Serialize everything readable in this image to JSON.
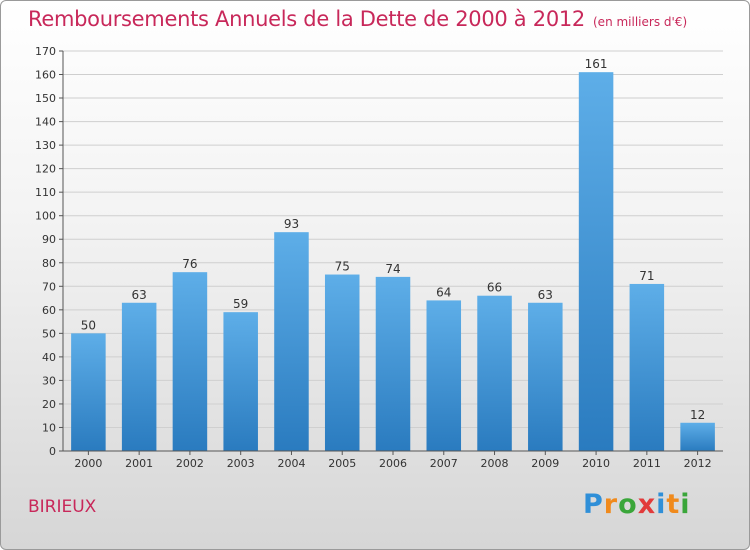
{
  "chart_data": {
    "type": "bar",
    "title": "Remboursements Annuels de la Dette de 2000 à 2012",
    "subtitle": "(en milliers d'€)",
    "categories": [
      "2000",
      "2001",
      "2002",
      "2003",
      "2004",
      "2005",
      "2006",
      "2007",
      "2008",
      "2009",
      "2010",
      "2011",
      "2012"
    ],
    "values": [
      50,
      63,
      76,
      59,
      93,
      75,
      74,
      64,
      66,
      63,
      161,
      71,
      12
    ],
    "ylim": [
      0,
      170
    ],
    "yticks": [
      0,
      10,
      20,
      30,
      40,
      50,
      60,
      70,
      80,
      90,
      100,
      110,
      120,
      130,
      140,
      150,
      160,
      170
    ],
    "grid": true,
    "legend": "none",
    "bar_color_top": "#5eaee8",
    "bar_color_bottom": "#2a7bbf",
    "grid_color": "#cfcfcf"
  },
  "footer": {
    "commune": "BIRIEUX",
    "logo_letters": [
      {
        "ch": "P",
        "color": "#2f8fd8"
      },
      {
        "ch": "r",
        "color": "#f08a1c"
      },
      {
        "ch": "o",
        "color": "#3aa63a"
      },
      {
        "ch": "x",
        "color": "#e23b3b"
      },
      {
        "ch": "i",
        "color": "#2f8fd8"
      },
      {
        "ch": "t",
        "color": "#f08a1c"
      },
      {
        "ch": "i",
        "color": "#3aa63a"
      }
    ]
  }
}
